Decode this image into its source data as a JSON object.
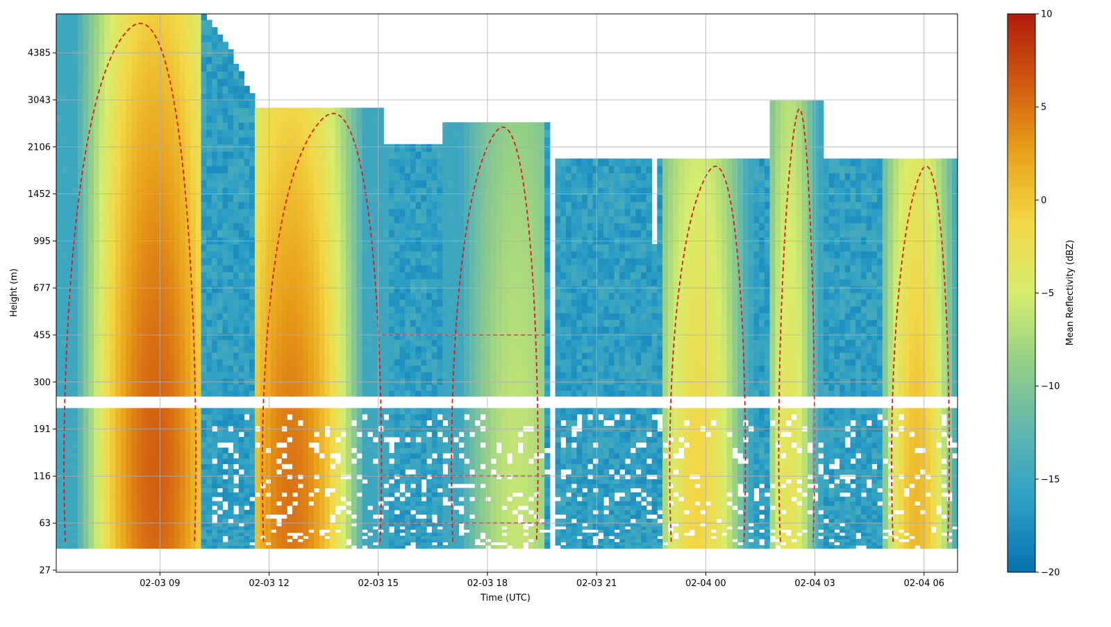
{
  "chart_data": {
    "type": "heatmap",
    "xlabel": "Time (UTC)",
    "ylabel": "Height (m)",
    "colorbar_label": "Mean Reflectivity (dBZ)",
    "x_start": "2024-02-03 06:15",
    "x_end": "2024-02-04 06:55",
    "x_ticks": [
      "02-03 09",
      "02-03 12",
      "02-03 15",
      "02-03 18",
      "02-03 21",
      "02-04 00",
      "02-04 03",
      "02-04 06"
    ],
    "x_tick_hours": [
      9,
      12,
      15,
      18,
      21,
      24,
      27,
      30
    ],
    "y_ticks": [
      "27",
      "63",
      "116",
      "191",
      "300",
      "455",
      "677",
      "995",
      "1452",
      "2106",
      "3043",
      "4385"
    ],
    "y_tick_values": [
      27,
      63,
      116,
      191,
      300,
      455,
      677,
      995,
      1452,
      2106,
      3043,
      4385
    ],
    "height_top": 6000,
    "colorbar_range": [
      -20,
      10
    ],
    "colorbar_ticks": [
      "10",
      "5",
      "0",
      "−5",
      "−10",
      "−15",
      "−20"
    ],
    "colormap": [
      "#0571b0",
      "#2b9ec6",
      "#5fb6b0",
      "#93cf86",
      "#d6ed6e",
      "#f2d847",
      "#e9a31a",
      "#d15a10",
      "#b01c0c"
    ],
    "contour_color": "#e81414",
    "grid": true,
    "features": [
      {
        "type": "echo",
        "t0": 6.15,
        "t1": 10.2,
        "h0": 40,
        "h1": 5900,
        "peak": 6,
        "center": 8.9
      },
      {
        "type": "echo",
        "t0": 11.6,
        "t1": 15.3,
        "h0": 40,
        "h1": 2900,
        "peak": 5,
        "center": 12.6
      },
      {
        "type": "echo",
        "t0": 16.8,
        "t1": 19.6,
        "h0": 40,
        "h1": 2600,
        "peak": -6,
        "center": 18.8
      },
      {
        "type": "echo",
        "t0": 22.8,
        "t1": 25.3,
        "h0": 40,
        "h1": 1900,
        "peak": -1,
        "center": 23.8
      },
      {
        "type": "echo",
        "t0": 25.8,
        "t1": 27.2,
        "h0": 40,
        "h1": 3000,
        "peak": -3,
        "center": 26.3
      },
      {
        "type": "echo",
        "t0": 28.9,
        "t1": 30.9,
        "h0": 40,
        "h1": 1900,
        "peak": 1,
        "center": 29.8
      }
    ],
    "gaps": [
      {
        "h0": 230,
        "h1": 262
      },
      {
        "t0": 19.65,
        "t1": 19.9
      },
      {
        "t0": 22.55,
        "t1": 22.7,
        "h0": 950,
        "h1": 1900
      }
    ]
  }
}
